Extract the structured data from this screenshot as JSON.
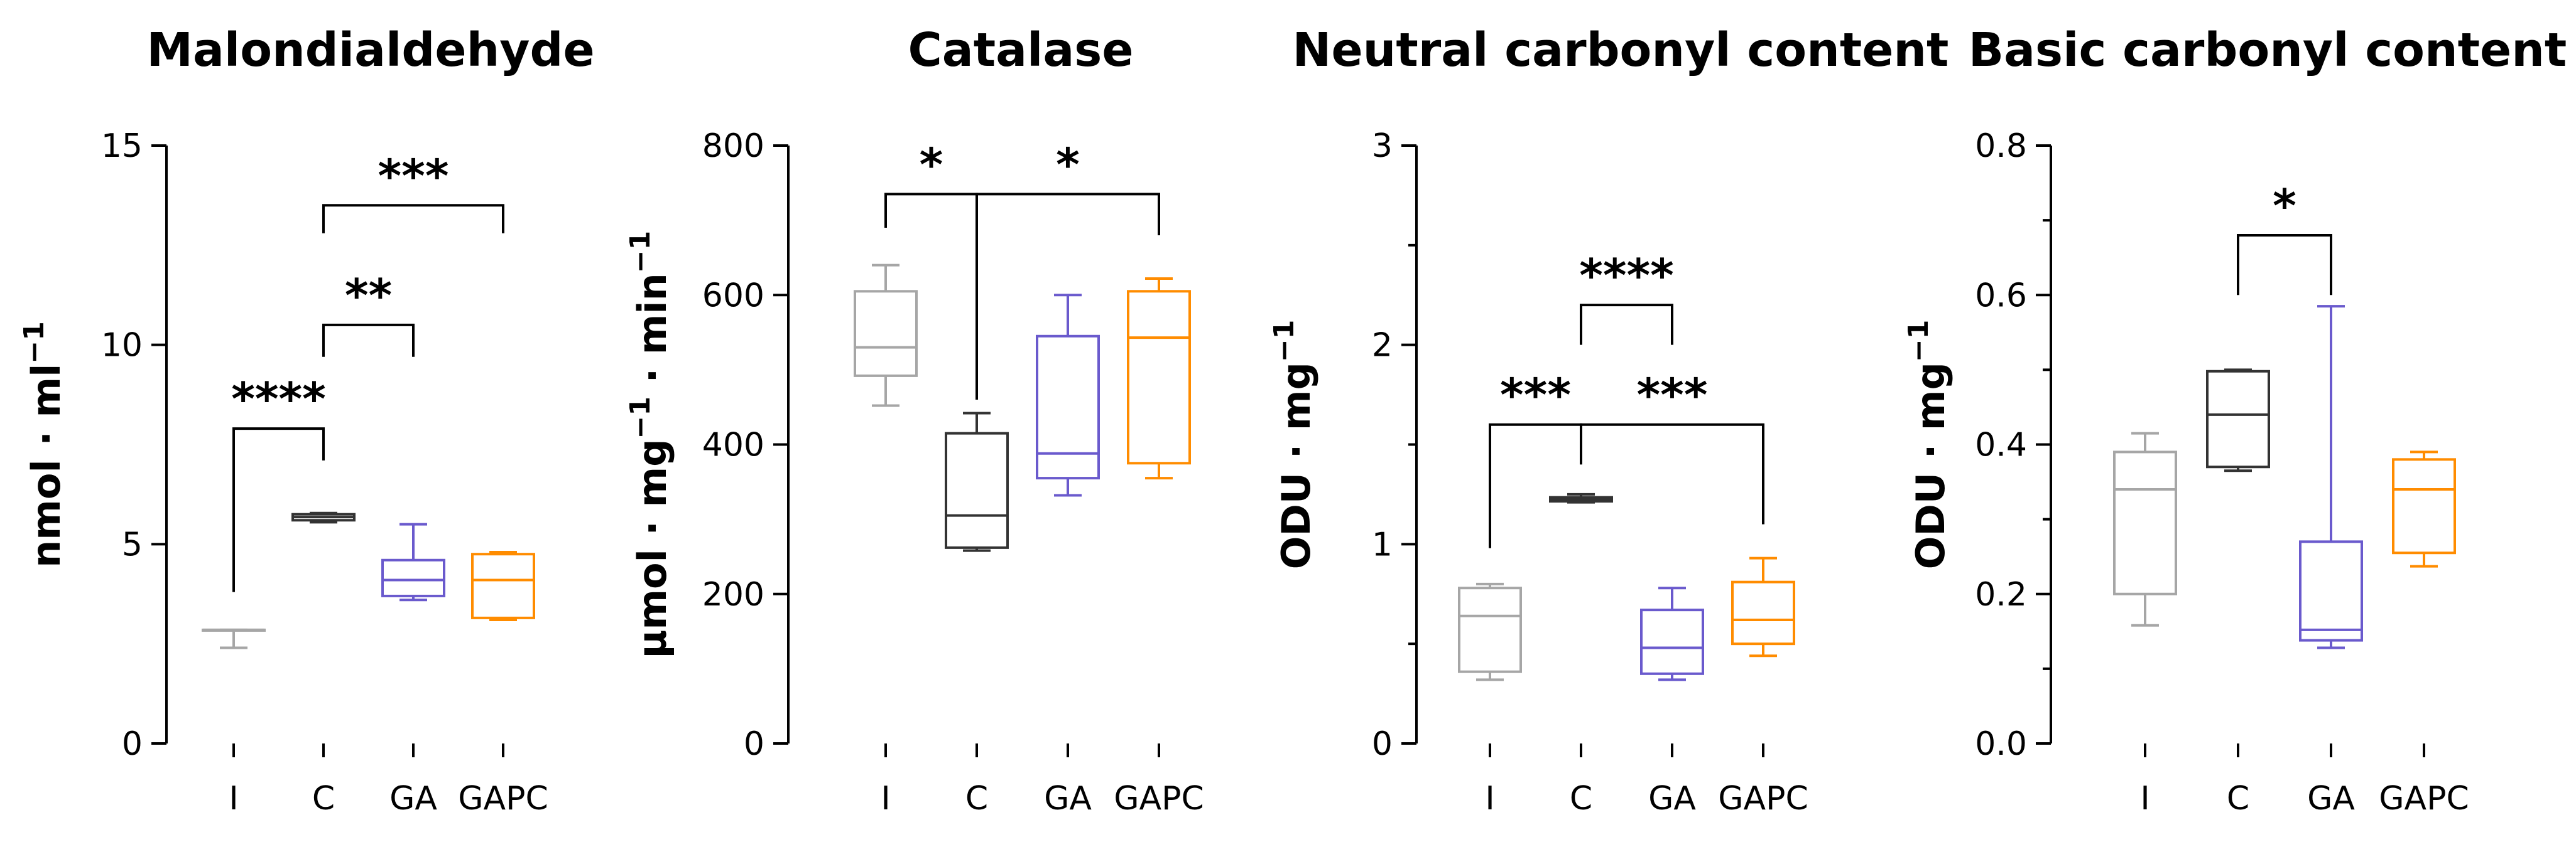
{
  "chart_data": [
    {
      "type": "box",
      "title": "Malondialdehyde",
      "ylabel": "nmol · ml",
      "ylabel_sup": "−1",
      "ylim": [
        0,
        15
      ],
      "yticks": [
        "0",
        "5",
        "10",
        "15"
      ],
      "ytick_values": [
        0,
        5,
        10,
        15
      ],
      "minor_ticks": [],
      "categories": [
        "I",
        "C",
        "GA",
        "GAPC"
      ],
      "boxes": [
        {
          "group": "I",
          "color": "#a6a6a6",
          "min": 2.4,
          "q1": 2.85,
          "median": 2.85,
          "q3": 2.85,
          "max": 2.85
        },
        {
          "group": "C",
          "color": "#333333",
          "min": 5.55,
          "q1": 5.6,
          "median": 5.68,
          "q3": 5.75,
          "max": 5.78
        },
        {
          "group": "GA",
          "color": "#6a5acd",
          "min": 3.6,
          "q1": 3.7,
          "median": 4.1,
          "q3": 4.6,
          "max": 5.5
        },
        {
          "group": "GAPC",
          "color": "#ff8c00",
          "min": 3.1,
          "q1": 3.15,
          "median": 4.1,
          "q3": 4.75,
          "max": 4.8
        }
      ],
      "annotations": [
        {
          "from": 0,
          "to": 1,
          "label": "****",
          "y": 7.9,
          "drop_from": 3.8,
          "drop_to": 7.1
        },
        {
          "from": 1,
          "to": 2,
          "label": "**",
          "y": 10.5,
          "drop_from": 9.7,
          "drop_to": 9.7
        },
        {
          "from": 1,
          "to": 3,
          "label": "***",
          "y": 13.5,
          "drop_from": 12.8,
          "drop_to": 12.8
        }
      ]
    },
    {
      "type": "box",
      "title": "Catalase",
      "ylabel": "µmol · mg",
      "ylabel_sup": "−1",
      "ylabel_tail": " · min",
      "ylabel_tail_sup": "−1",
      "ylim": [
        0,
        800
      ],
      "yticks": [
        "0",
        "200",
        "400",
        "600",
        "800"
      ],
      "ytick_values": [
        0,
        200,
        400,
        600,
        800
      ],
      "minor_ticks": [],
      "categories": [
        "I",
        "C",
        "GA",
        "GAPC"
      ],
      "boxes": [
        {
          "group": "I",
          "color": "#a6a6a6",
          "min": 452,
          "q1": 492,
          "median": 530,
          "q3": 605,
          "max": 640
        },
        {
          "group": "C",
          "color": "#333333",
          "min": 258,
          "q1": 262,
          "median": 305,
          "q3": 415,
          "max": 442
        },
        {
          "group": "GA",
          "color": "#6a5acd",
          "min": 332,
          "q1": 355,
          "median": 388,
          "q3": 545,
          "max": 600
        },
        {
          "group": "GAPC",
          "color": "#ff8c00",
          "min": 355,
          "q1": 375,
          "median": 543,
          "q3": 605,
          "max": 622
        }
      ],
      "annotations": [
        {
          "from": 0,
          "to": 1,
          "label": "*",
          "y": 735,
          "drop_from": 690,
          "drop_to": 460
        },
        {
          "from": 1,
          "to": 3,
          "label": "*",
          "y": 735,
          "drop_from": 460,
          "drop_to": 680
        }
      ]
    },
    {
      "type": "box",
      "title": "Neutral carbonyl content",
      "ylabel": "ODU · mg",
      "ylabel_sup": "−1",
      "ylim": [
        0,
        3
      ],
      "yticks": [
        "0",
        "1",
        "2",
        "3"
      ],
      "ytick_values": [
        0,
        1,
        2,
        3
      ],
      "minor_ticks": [
        0.5,
        1.5,
        2.5
      ],
      "categories": [
        "I",
        "C",
        "GA",
        "GAPC"
      ],
      "boxes": [
        {
          "group": "I",
          "color": "#a6a6a6",
          "min": 0.32,
          "q1": 0.36,
          "median": 0.64,
          "q3": 0.78,
          "max": 0.8
        },
        {
          "group": "C",
          "color": "#333333",
          "min": 1.21,
          "q1": 1.215,
          "median": 1.225,
          "q3": 1.235,
          "max": 1.25
        },
        {
          "group": "GA",
          "color": "#6a5acd",
          "min": 0.32,
          "q1": 0.35,
          "median": 0.48,
          "q3": 0.67,
          "max": 0.78
        },
        {
          "group": "GAPC",
          "color": "#ff8c00",
          "min": 0.44,
          "q1": 0.5,
          "median": 0.62,
          "q3": 0.81,
          "max": 0.93
        }
      ],
      "annotations": [
        {
          "from": 0,
          "to": 1,
          "label": "***",
          "y": 1.6,
          "drop_from": 0.98,
          "drop_to": 1.4
        },
        {
          "from": 1,
          "to": 3,
          "label": "***",
          "y": 1.6,
          "drop_from": 1.4,
          "drop_to": 1.1
        },
        {
          "from": 1,
          "to": 2,
          "label": "****",
          "y": 2.2,
          "drop_from": 2.0,
          "drop_to": 2.0
        }
      ]
    },
    {
      "type": "box",
      "title": "Basic carbonyl content",
      "ylabel": "ODU · mg",
      "ylabel_sup": "−1",
      "ylim": [
        0,
        0.8
      ],
      "yticks": [
        "0.0",
        "0.2",
        "0.4",
        "0.6",
        "0.8"
      ],
      "ytick_values": [
        0,
        0.2,
        0.4,
        0.6,
        0.8
      ],
      "minor_ticks": [
        0.1,
        0.3,
        0.5,
        0.7
      ],
      "categories": [
        "I",
        "C",
        "GA",
        "GAPC"
      ],
      "boxes": [
        {
          "group": "I",
          "color": "#a6a6a6",
          "min": 0.158,
          "q1": 0.2,
          "median": 0.34,
          "q3": 0.39,
          "max": 0.415
        },
        {
          "group": "C",
          "color": "#333333",
          "min": 0.365,
          "q1": 0.37,
          "median": 0.44,
          "q3": 0.498,
          "max": 0.5
        },
        {
          "group": "GA",
          "color": "#6a5acd",
          "min": 0.128,
          "q1": 0.138,
          "median": 0.152,
          "q3": 0.27,
          "max": 0.585
        },
        {
          "group": "GAPC",
          "color": "#ff8c00",
          "min": 0.237,
          "q1": 0.255,
          "median": 0.34,
          "q3": 0.38,
          "max": 0.39
        }
      ],
      "annotations": [
        {
          "from": 1,
          "to": 2,
          "label": "*",
          "y": 0.68,
          "drop_from": 0.6,
          "drop_to": 0.6
        }
      ]
    }
  ]
}
